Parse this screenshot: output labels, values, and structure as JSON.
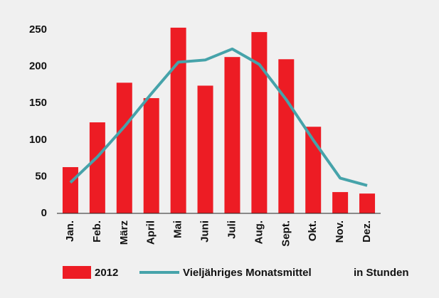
{
  "chart_data": {
    "type": "bar",
    "categories": [
      "Jan.",
      "Feb.",
      "März",
      "April",
      "Mai",
      "Juni",
      "Juli",
      "Aug.",
      "Sept.",
      "Okt.",
      "Nov.",
      "Dez."
    ],
    "series": [
      {
        "name": "2012",
        "type": "bar",
        "color": "#ed1c24",
        "values": [
          63,
          124,
          178,
          157,
          253,
          174,
          213,
          247,
          210,
          118,
          29,
          27
        ]
      },
      {
        "name": "Vieljähriges Monatsmittel",
        "type": "line",
        "color": "#46a3aa",
        "values": [
          42,
          77,
          118,
          163,
          206,
          209,
          224,
          203,
          155,
          100,
          48,
          38
        ]
      }
    ],
    "unit_label": "in Stunden",
    "ylim": [
      0,
      250
    ],
    "yticks": [
      0,
      50,
      100,
      150,
      200,
      250
    ],
    "grid": false
  }
}
